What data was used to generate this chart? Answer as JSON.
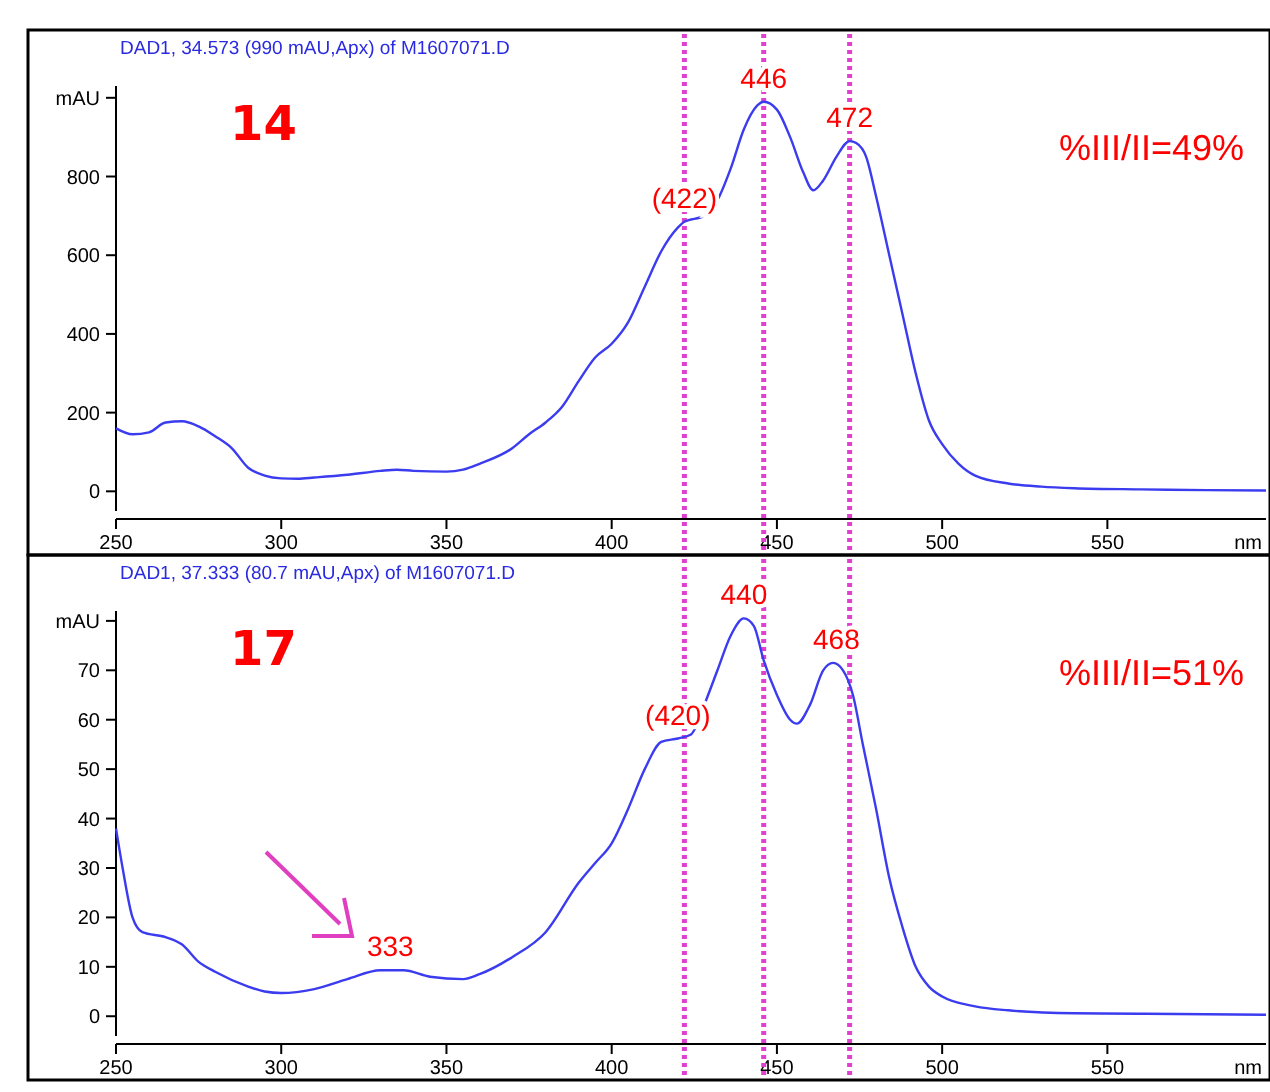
{
  "chart_data": [
    {
      "type": "line",
      "title": "DAD1, 34.573 (990 mAU,Apx) of M1607071.D",
      "xlabel": "nm",
      "xlim": [
        250,
        598
      ],
      "xticks": [
        250,
        300,
        350,
        400,
        450,
        500,
        550
      ],
      "ylim": [
        -50,
        1030
      ],
      "yticks": [
        0,
        200,
        400,
        600,
        800,
        {
          "value": 1000,
          "label": "mAU"
        }
      ],
      "grid": false,
      "series": [
        {
          "color": "#3b3bf0",
          "x": [
            250,
            255,
            260,
            265,
            270,
            275,
            280,
            285,
            290,
            295,
            300,
            305,
            310,
            320,
            330,
            335,
            340,
            350,
            355,
            360,
            370,
            375,
            380,
            385,
            390,
            395,
            400,
            405,
            410,
            415,
            420,
            422,
            428,
            432,
            436,
            440,
            444,
            446,
            450,
            454,
            458,
            461,
            464,
            468,
            472,
            474,
            477,
            480,
            484,
            488,
            492,
            496,
            500,
            505,
            510,
            520,
            530,
            540,
            560,
            580,
            598
          ],
          "values": [
            160,
            145,
            150,
            175,
            178,
            165,
            140,
            110,
            60,
            40,
            33,
            32,
            35,
            42,
            52,
            55,
            52,
            50,
            55,
            70,
            110,
            145,
            175,
            215,
            280,
            340,
            375,
            430,
            520,
            610,
            670,
            685,
            700,
            740,
            820,
            920,
            980,
            990,
            970,
            900,
            810,
            765,
            790,
            850,
            890,
            885,
            850,
            750,
            600,
            450,
            300,
            180,
            120,
            70,
            40,
            20,
            12,
            8,
            5,
            3,
            2
          ]
        }
      ],
      "ref_lines": [
        {
          "axis": "x",
          "value": 422,
          "color": "#e040d0",
          "line_style": "dotted"
        },
        {
          "axis": "x",
          "value": 446,
          "color": "#e040d0",
          "line_style": "dotted"
        },
        {
          "axis": "x",
          "value": 472,
          "color": "#e040d0",
          "line_style": "dotted"
        }
      ],
      "annotations": [
        "14",
        "%III/II=49%",
        {
          "text": "(422)",
          "x": 422,
          "y": 685
        },
        {
          "text": "446",
          "x": 446,
          "y": 990
        },
        {
          "text": "472",
          "x": 472,
          "y": 890
        }
      ]
    },
    {
      "type": "line",
      "title": "DAD1, 37.333 (80.7 mAU,Apx) of M1607071.D",
      "xlabel": "nm",
      "xlim": [
        250,
        598
      ],
      "xticks": [
        250,
        300,
        350,
        400,
        450,
        500,
        550
      ],
      "ylim": [
        -4,
        82
      ],
      "yticks": [
        0,
        10,
        20,
        30,
        40,
        50,
        60,
        70,
        {
          "value": 80,
          "label": "mAU"
        }
      ],
      "grid": false,
      "series": [
        {
          "color": "#3b3bf0",
          "x": [
            250,
            252,
            255,
            258,
            265,
            270,
            275,
            280,
            290,
            295,
            300,
            310,
            320,
            330,
            337,
            345,
            355,
            360,
            370,
            380,
            390,
            395,
            400,
            405,
            410,
            415,
            420,
            424,
            428,
            432,
            436,
            440,
            443,
            446,
            450,
            454,
            456,
            460,
            464,
            467,
            470,
            473,
            476,
            480,
            484,
            488,
            492,
            496,
            500,
            510,
            520,
            540,
            560,
            580,
            598
          ],
          "values": [
            38,
            30,
            20,
            17,
            16,
            14.5,
            11,
            9,
            6,
            5,
            4.7,
            5.5,
            7.5,
            9.3,
            9.3,
            8,
            7.5,
            8.5,
            12,
            17,
            27,
            31,
            35,
            42,
            50,
            55.5,
            56.2,
            57,
            63,
            70,
            77,
            80.5,
            79,
            72,
            65,
            60,
            59.2,
            63,
            70,
            71.5,
            70,
            65,
            55,
            42,
            28,
            18,
            10,
            6,
            4,
            2,
            1.2,
            0.6,
            0.5,
            0.4,
            0.3
          ]
        }
      ],
      "ref_lines": [
        {
          "axis": "x",
          "value": 422,
          "color": "#e040d0",
          "line_style": "dotted"
        },
        {
          "axis": "x",
          "value": 446,
          "color": "#e040d0",
          "line_style": "dotted"
        },
        {
          "axis": "x",
          "value": 472,
          "color": "#e040d0",
          "line_style": "dotted"
        }
      ],
      "annotations": [
        "17",
        "%III/II=51%",
        {
          "text": "(420)",
          "x": 420,
          "y": 56.2
        },
        {
          "text": "440",
          "x": 440,
          "y": 80.5
        },
        {
          "text": "468",
          "x": 468,
          "y": 71.5
        },
        {
          "text": "333",
          "x": 333,
          "y": 9.3
        }
      ]
    }
  ]
}
